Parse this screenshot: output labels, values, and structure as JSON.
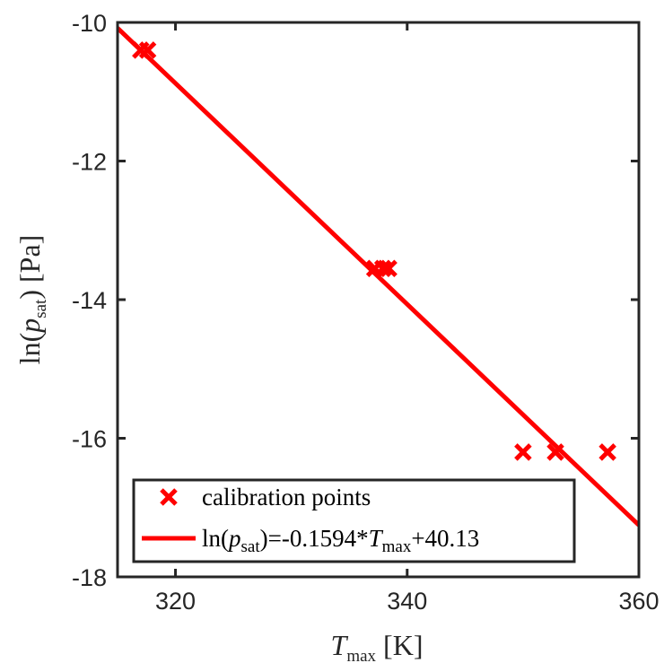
{
  "chart_data": {
    "type": "scatter",
    "xlabel": {
      "var": "T",
      "sub": "max",
      "unit": "[K]"
    },
    "ylabel": {
      "pre": "ln(",
      "var": "p",
      "sub": "sat",
      "post": ") [Pa]"
    },
    "xlim": [
      315,
      360
    ],
    "ylim": [
      -18,
      -10
    ],
    "xticks": [
      320,
      340,
      360
    ],
    "yticks": [
      -10,
      -12,
      -14,
      -16,
      -18
    ],
    "x_tick_labels": [
      "320",
      "340",
      "360"
    ],
    "y_tick_labels": [
      "-10",
      "-12",
      "-14",
      "-16",
      "-18"
    ],
    "grid": false,
    "legend_position": "bottom-left",
    "colors": {
      "series": "#ff0000",
      "axes": "#262626"
    },
    "series": [
      {
        "name": "calibration points",
        "type": "scatter",
        "marker": "x",
        "points": [
          {
            "x": 317.0,
            "y": -10.4
          },
          {
            "x": 317.6,
            "y": -10.4
          },
          {
            "x": 337.2,
            "y": -13.55
          },
          {
            "x": 337.9,
            "y": -13.55
          },
          {
            "x": 338.4,
            "y": -13.55
          },
          {
            "x": 350.0,
            "y": -16.2
          },
          {
            "x": 352.8,
            "y": -16.2
          },
          {
            "x": 357.3,
            "y": -16.2
          }
        ]
      },
      {
        "name": "ln(psat)=-0.1594*Tmax+40.13",
        "type": "line",
        "fit": {
          "slope": -0.1594,
          "intercept": 40.13
        },
        "legend_label": {
          "pre": "ln(",
          "var1": "p",
          "sub1": "sat",
          "mid": ")=-0.1594*",
          "var2": "T",
          "sub2": "max",
          "post": "+40.13"
        }
      }
    ]
  }
}
